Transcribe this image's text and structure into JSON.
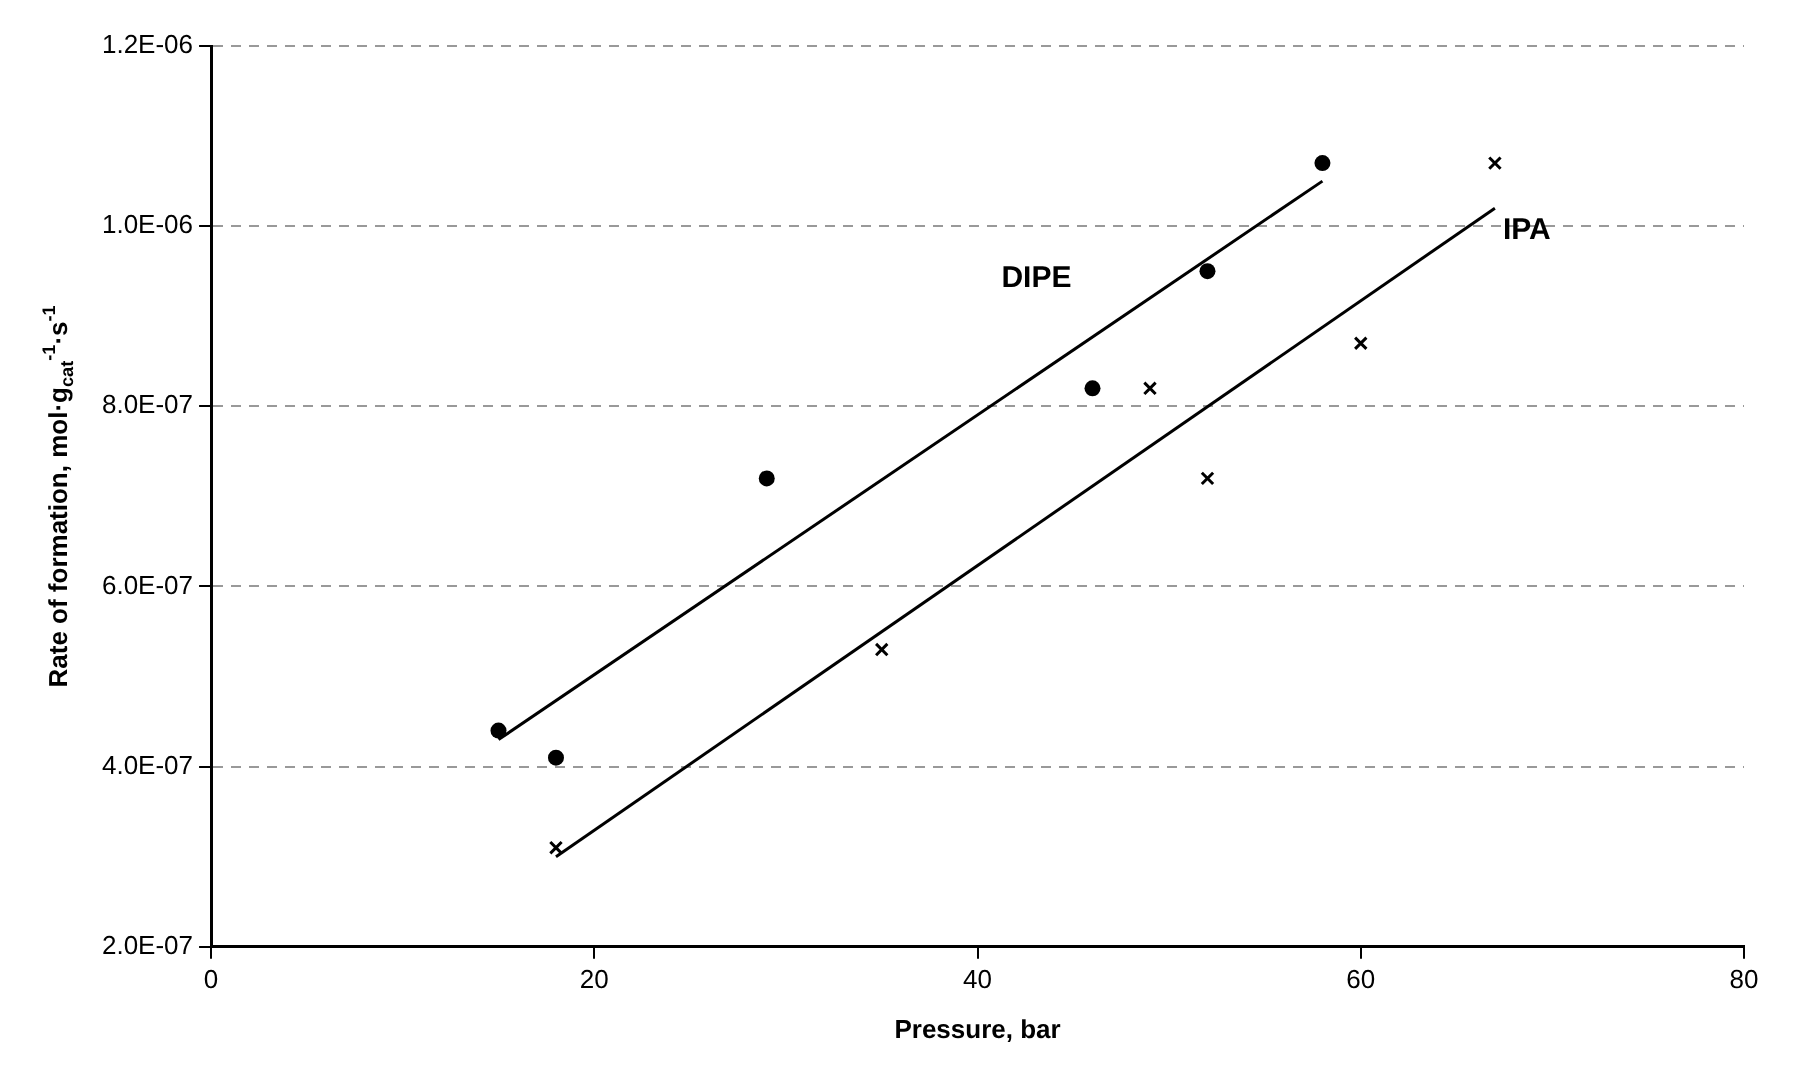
{
  "chart_data": {
    "type": "scatter",
    "xlabel": "Pressure, bar",
    "ylabel": "Rate of formation, mol·g$_{cat}$$^{-1}$·s$^{-1}$",
    "xlim": [
      0,
      80
    ],
    "xticks": [
      0,
      20,
      40,
      60,
      80
    ],
    "ylim": [
      2e-07,
      1.2e-06
    ],
    "yticks": [
      {
        "value": 2e-07,
        "label": "2.0E-07"
      },
      {
        "value": 4e-07,
        "label": "4.0E-07"
      },
      {
        "value": 6e-07,
        "label": "6.0E-07"
      },
      {
        "value": 8e-07,
        "label": "8.0E-07"
      },
      {
        "value": 1e-06,
        "label": "1.0E-06"
      },
      {
        "value": 1.2e-06,
        "label": "1.2E-06"
      }
    ],
    "grid": "y",
    "legend": false,
    "series": [
      {
        "name": "DIPE",
        "type": "scatter",
        "marker": "circle",
        "color": "#000000",
        "x": [
          15,
          18,
          29,
          46,
          52,
          58
        ],
        "values": [
          4.4e-07,
          4.1e-07,
          7.2e-07,
          8.2e-07,
          9.5e-07,
          1.07e-06
        ]
      },
      {
        "name": "IPA",
        "type": "scatter",
        "marker": "cross",
        "color": "#000000",
        "x": [
          18,
          35,
          49,
          52,
          60,
          67
        ],
        "values": [
          3.1e-07,
          5.3e-07,
          8.2e-07,
          7.2e-07,
          8.7e-07,
          1.07e-06
        ]
      },
      {
        "type": "line",
        "marker": "none",
        "line_style": "solid",
        "color": "#000000",
        "x": [
          15,
          58
        ],
        "values": [
          4.3e-07,
          1.05e-06
        ]
      },
      {
        "type": "line",
        "marker": "none",
        "line_style": "solid",
        "color": "#000000",
        "x": [
          18,
          67
        ],
        "values": [
          3e-07,
          1.02e-06
        ]
      }
    ]
  }
}
